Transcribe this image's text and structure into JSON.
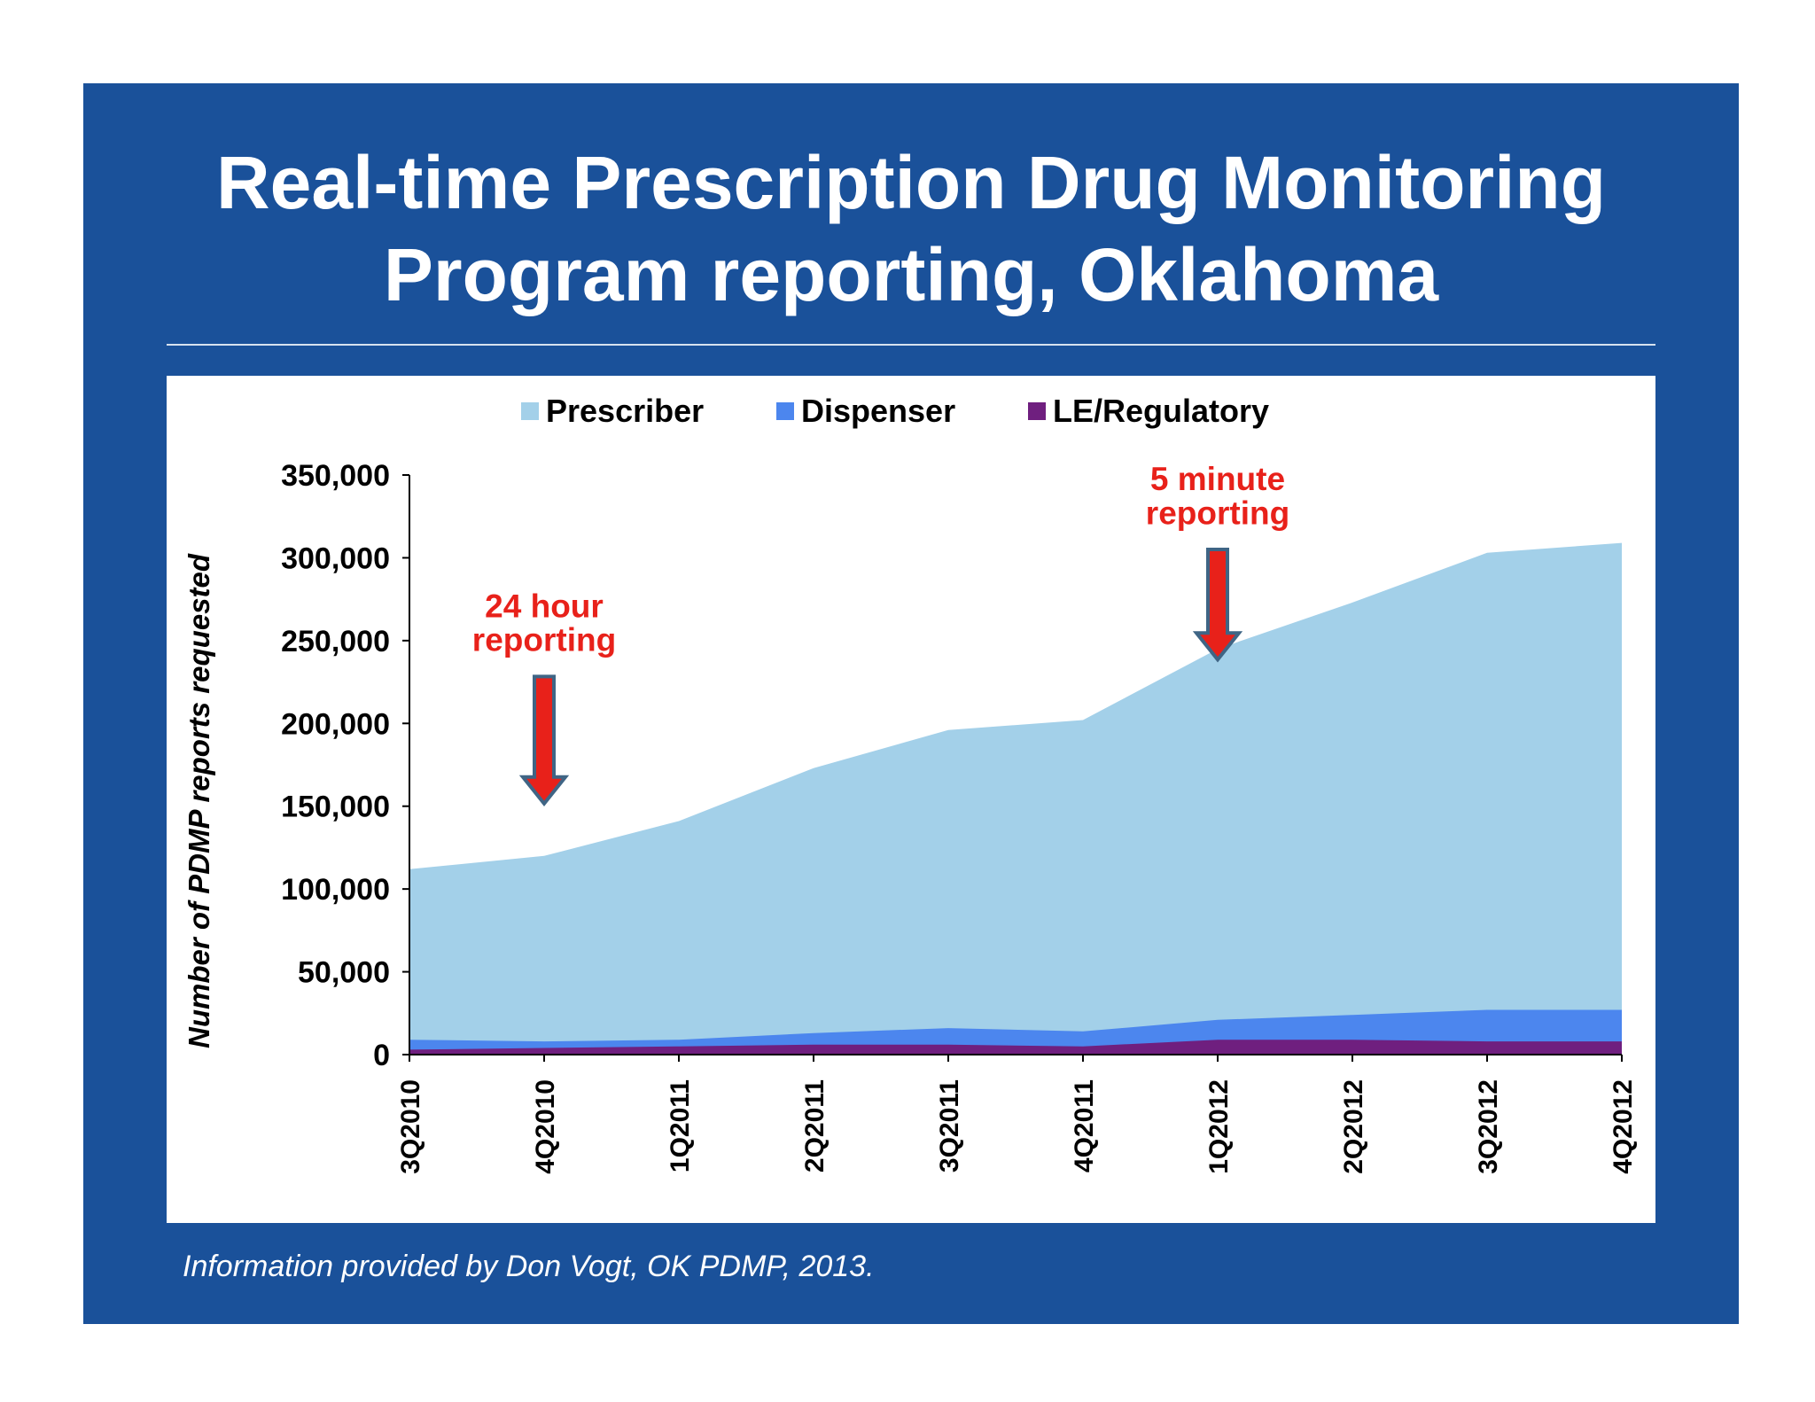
{
  "slide": {
    "title_line1": "Real-time Prescription Drug Monitoring",
    "title_line2": "Program reporting, Oklahoma",
    "source": "Information provided by Don Vogt, OK PDMP, 2013.",
    "background_color": "#1a519a"
  },
  "chart_data": {
    "type": "area",
    "stacked": true,
    "categories": [
      "3Q2010",
      "4Q2010",
      "1Q2011",
      "2Q2011",
      "3Q2011",
      "4Q2011",
      "1Q2012",
      "2Q2012",
      "3Q2012",
      "4Q2012"
    ],
    "series": [
      {
        "name": "Prescriber",
        "color": "#a3d0e9",
        "totals": [
          112000,
          120000,
          141000,
          173000,
          196000,
          202000,
          245000,
          273000,
          303000,
          309000
        ]
      },
      {
        "name": "Dispenser",
        "color": "#4c86ee",
        "totals": [
          9000,
          8000,
          9000,
          13000,
          16000,
          14000,
          21000,
          24000,
          27000,
          27000
        ]
      },
      {
        "name": "LE/Regulatory",
        "color": "#6f1f7f",
        "totals": [
          3000,
          4000,
          5000,
          6000,
          6000,
          5000,
          9000,
          9000,
          8000,
          8000
        ]
      }
    ],
    "ylabel": "Number of PDMP reports requested",
    "xlabel": "",
    "ylim": [
      0,
      350000
    ],
    "y_ticks": [
      "0",
      "50,000",
      "100,000",
      "150,000",
      "200,000",
      "250,000",
      "300,000",
      "350,000"
    ],
    "legend_position": "top",
    "grid": false,
    "annotations": [
      {
        "line1": "24 hour",
        "line2": "reporting",
        "category": "4Q2010",
        "color": "#e8211a"
      },
      {
        "line1": "5 minute",
        "line2": "reporting",
        "category": "1Q2012",
        "color": "#e8211a"
      }
    ]
  }
}
